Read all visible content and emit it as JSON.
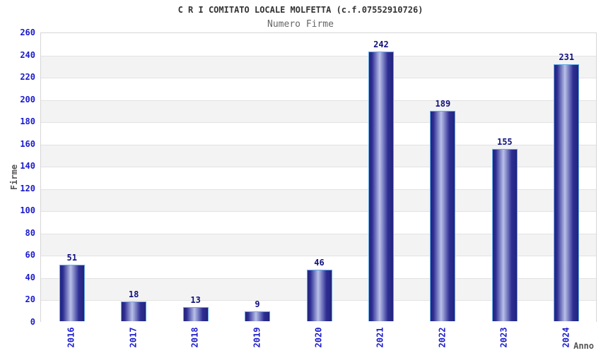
{
  "chart_data": {
    "type": "bar",
    "title": "C R I COMITATO LOCALE MOLFETTA (c.f.07552910726)",
    "subtitle": "Numero Firme",
    "xlabel": "Anno",
    "ylabel": "Firme",
    "categories": [
      "2016",
      "2017",
      "2018",
      "2019",
      "2020",
      "2021",
      "2022",
      "2023",
      "2024"
    ],
    "values": [
      51,
      18,
      13,
      9,
      46,
      242,
      189,
      155,
      231
    ],
    "ylim": [
      0,
      260
    ],
    "ytick_step": 20,
    "legend": "none",
    "grid": "horizontal-bands",
    "colors": {
      "bar_dark": "#23237c",
      "bar_mid": "#2e2e94",
      "bar_light": "#b9c0e8",
      "bar_border": "#62aae6",
      "tick_label": "#1a1acc",
      "value_label": "#10107e",
      "title": "#333333",
      "subtitle": "#666666",
      "axis_title": "#555555",
      "band": "#f3f3f3",
      "gridline": "#e2e2e2",
      "plot_border": "#d6d6d6"
    }
  }
}
